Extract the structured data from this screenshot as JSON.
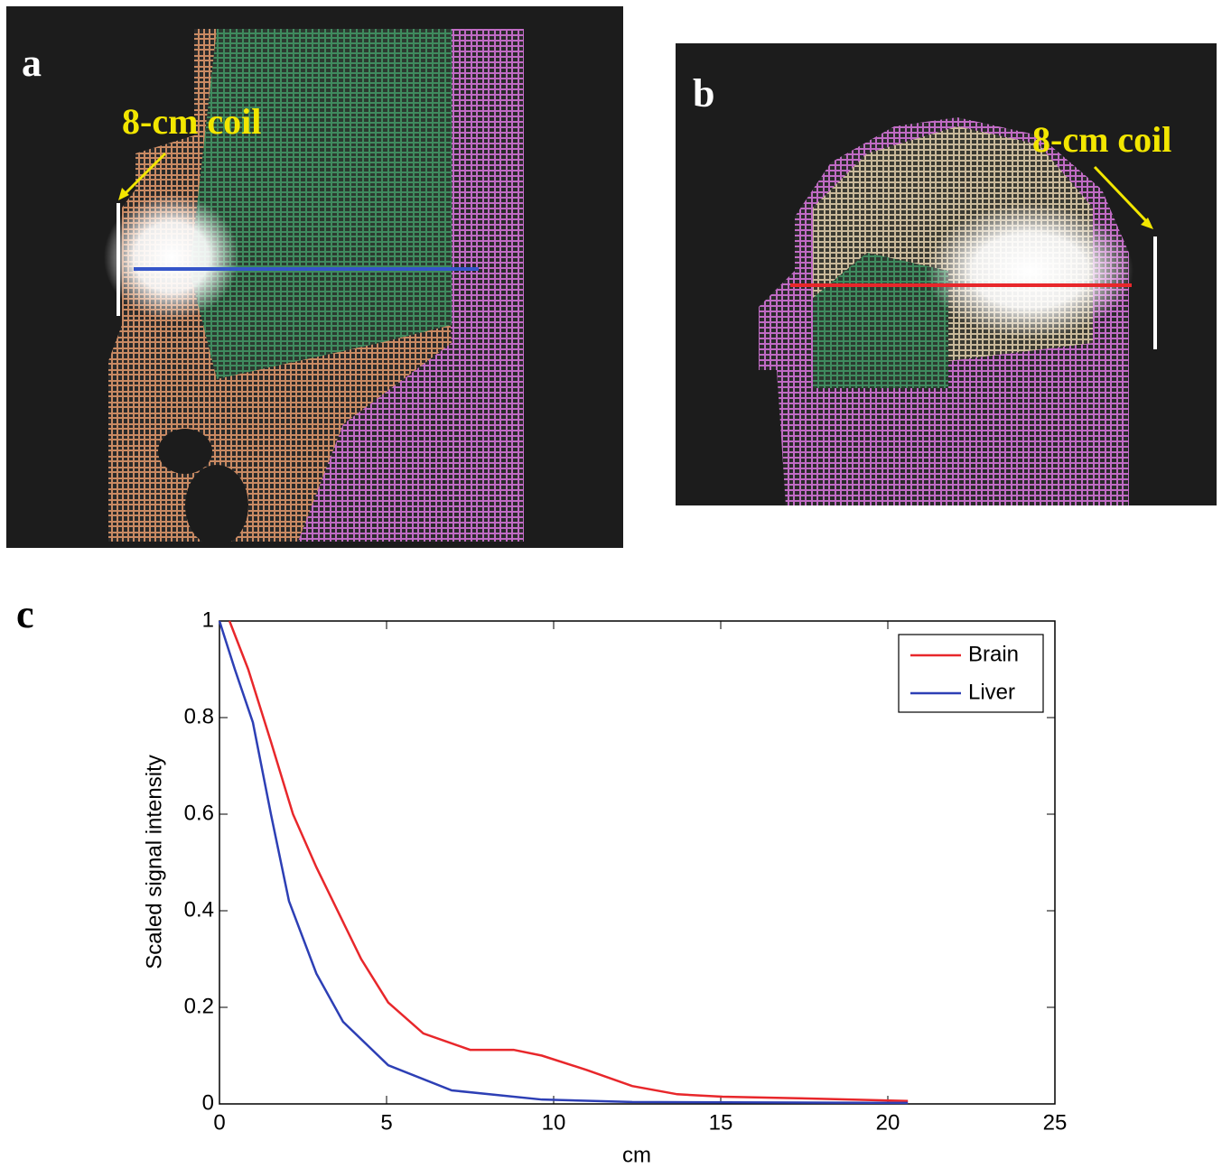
{
  "panels": [
    {
      "label": "a",
      "annotation": "8-cm coil"
    },
    {
      "label": "b",
      "annotation": "8-cm coil"
    }
  ],
  "chart_data": {
    "type": "line",
    "label": "c",
    "x_label": "cm",
    "y_label": "Scaled signal intensity",
    "xlim": [
      0,
      25
    ],
    "xticks": [
      0,
      5,
      10,
      15,
      20,
      25
    ],
    "ylim": [
      0,
      1
    ],
    "yticks": [
      0,
      0.2,
      0.4,
      0.6,
      0.8,
      1
    ],
    "grid": false,
    "legend": "upper right",
    "series": [
      {
        "name": "Brain",
        "color": "#e8272b",
        "x": [
          0.3,
          0.86,
          1.54,
          2.2,
          2.9,
          4.24,
          5.05,
          6.1,
          7.5,
          8.8,
          9.65,
          11.0,
          12.35,
          13.7,
          15.05,
          17.75,
          20.6
        ],
        "values": [
          1.0,
          0.9,
          0.75,
          0.6,
          0.49,
          0.3,
          0.21,
          0.146,
          0.112,
          0.112,
          0.1,
          0.07,
          0.037,
          0.02,
          0.015,
          0.011,
          0.006
        ]
      },
      {
        "name": "Liver",
        "color": "#2d3fb5",
        "x": [
          0,
          0.46,
          1.0,
          1.54,
          2.08,
          2.9,
          3.7,
          5.05,
          6.95,
          9.65,
          12.35,
          20.6
        ],
        "values": [
          1.0,
          0.9,
          0.79,
          0.6,
          0.42,
          0.27,
          0.17,
          0.08,
          0.028,
          0.009,
          0.004,
          0.002
        ]
      }
    ]
  }
}
